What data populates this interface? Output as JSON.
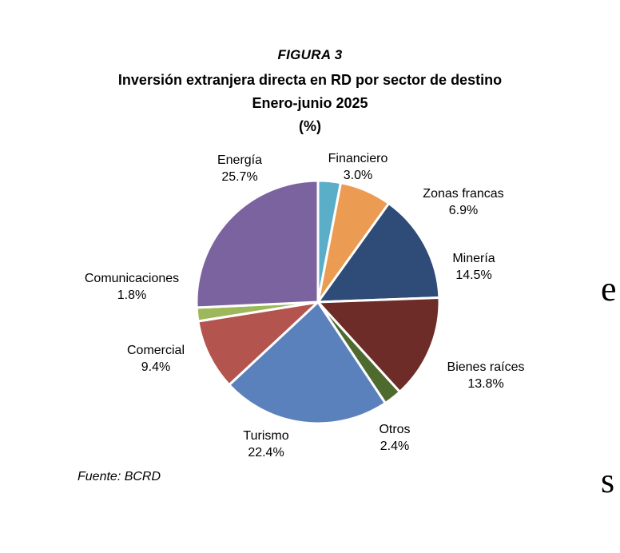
{
  "figure_label": "FIGURA 3",
  "source": "Fuente: BCRD",
  "edge_text": [
    "e",
    "s"
  ],
  "chart_data": {
    "type": "pie",
    "title": "Inversión extranjera directa en RD por sector de destino",
    "subtitle": "Enero-junio 2025",
    "unit": "(%)",
    "legend": "none",
    "slices": [
      {
        "name": "Financiero",
        "value": 3.0,
        "label": "3.0%",
        "color": "#5aaec8"
      },
      {
        "name": "Zonas francas",
        "value": 6.9,
        "label": "6.9%",
        "color": "#eb9c52"
      },
      {
        "name": "Minería",
        "value": 14.5,
        "label": "14.5%",
        "color": "#2f4c78"
      },
      {
        "name": "Bienes raíces",
        "value": 13.8,
        "label": "13.8%",
        "color": "#6e2c28"
      },
      {
        "name": "Otros",
        "value": 2.4,
        "label": "2.4%",
        "color": "#4f6a2e"
      },
      {
        "name": "Turismo",
        "value": 22.4,
        "label": "22.4%",
        "color": "#5b81bc"
      },
      {
        "name": "Comercial",
        "value": 9.4,
        "label": "9.4%",
        "color": "#b3554e"
      },
      {
        "name": "Comunicaciones",
        "value": 1.8,
        "label": "1.8%",
        "color": "#9cb85b"
      },
      {
        "name": "Energía",
        "value": 25.7,
        "label": "25.7%",
        "color": "#7b63a0"
      }
    ]
  }
}
